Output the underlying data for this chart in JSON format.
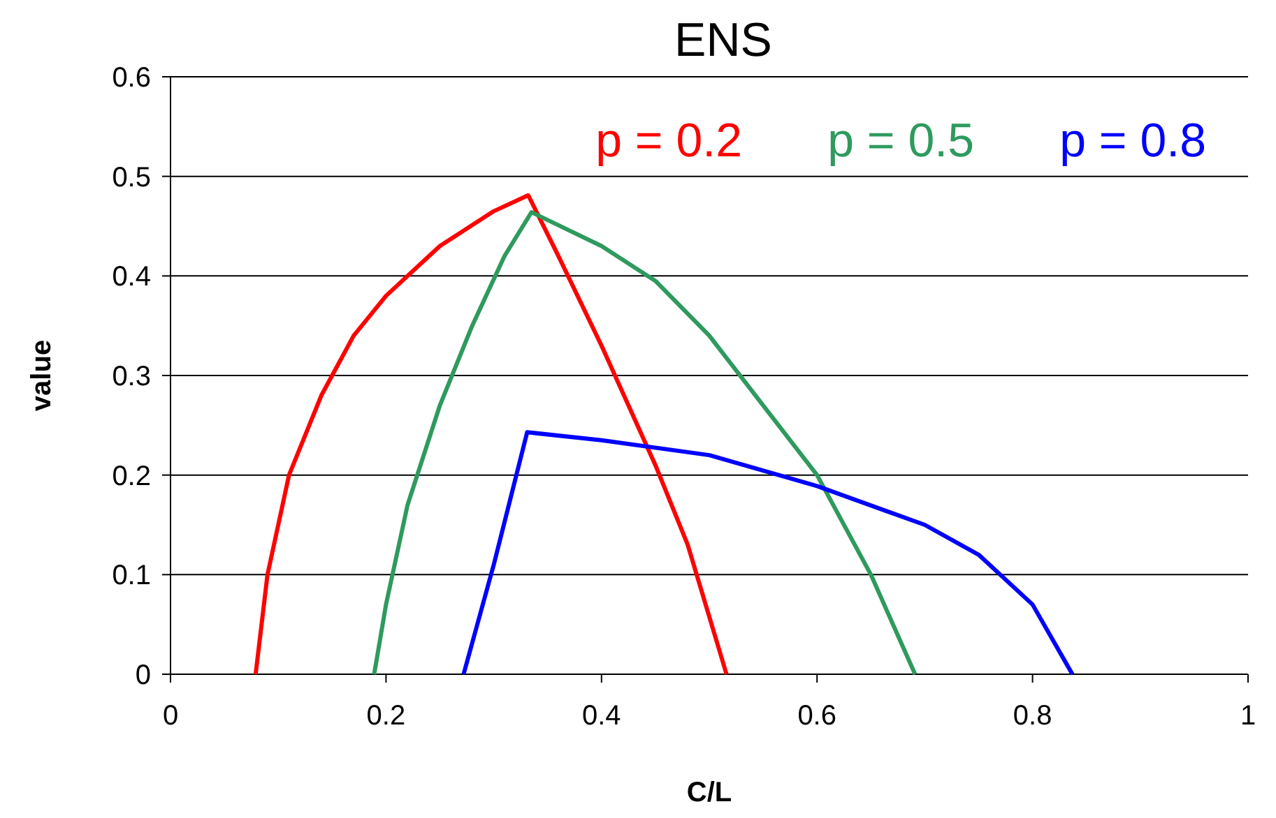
{
  "chart_data": {
    "type": "line",
    "title": "ENS",
    "xlabel": "C/L",
    "ylabel": "value",
    "xlim": [
      0,
      1
    ],
    "xticks": [
      0,
      0.2,
      0.4,
      0.6,
      0.8,
      1
    ],
    "ylim": [
      0,
      0.6
    ],
    "yticks": [
      0,
      0.1,
      0.2,
      0.3,
      0.4,
      0.5,
      0.6
    ],
    "grid": "y",
    "legend": "top right",
    "marker": "none",
    "line_style": "solid",
    "series": [
      {
        "name": "p = 0.2",
        "color": "#ff0000",
        "x": [
          0.079,
          0.09,
          0.11,
          0.14,
          0.17,
          0.2,
          0.25,
          0.3,
          0.332,
          0.36,
          0.4,
          0.45,
          0.48,
          0.516
        ],
        "values": [
          0,
          0.1,
          0.2,
          0.28,
          0.34,
          0.38,
          0.43,
          0.465,
          0.481,
          0.42,
          0.33,
          0.21,
          0.13,
          0
        ]
      },
      {
        "name": "p = 0.5",
        "color": "#2e9a5e",
        "x": [
          0.189,
          0.2,
          0.22,
          0.25,
          0.28,
          0.31,
          0.335,
          0.4,
          0.45,
          0.5,
          0.55,
          0.6,
          0.65,
          0.691
        ],
        "values": [
          0,
          0.07,
          0.17,
          0.27,
          0.35,
          0.42,
          0.464,
          0.43,
          0.395,
          0.34,
          0.27,
          0.2,
          0.1,
          0
        ]
      },
      {
        "name": "p = 0.8",
        "color": "#0000ff",
        "x": [
          0.272,
          0.3,
          0.331,
          0.4,
          0.5,
          0.6,
          0.7,
          0.75,
          0.8,
          0.837
        ],
        "values": [
          0,
          0.11,
          0.243,
          0.235,
          0.22,
          0.189,
          0.15,
          0.12,
          0.07,
          0
        ]
      }
    ]
  }
}
